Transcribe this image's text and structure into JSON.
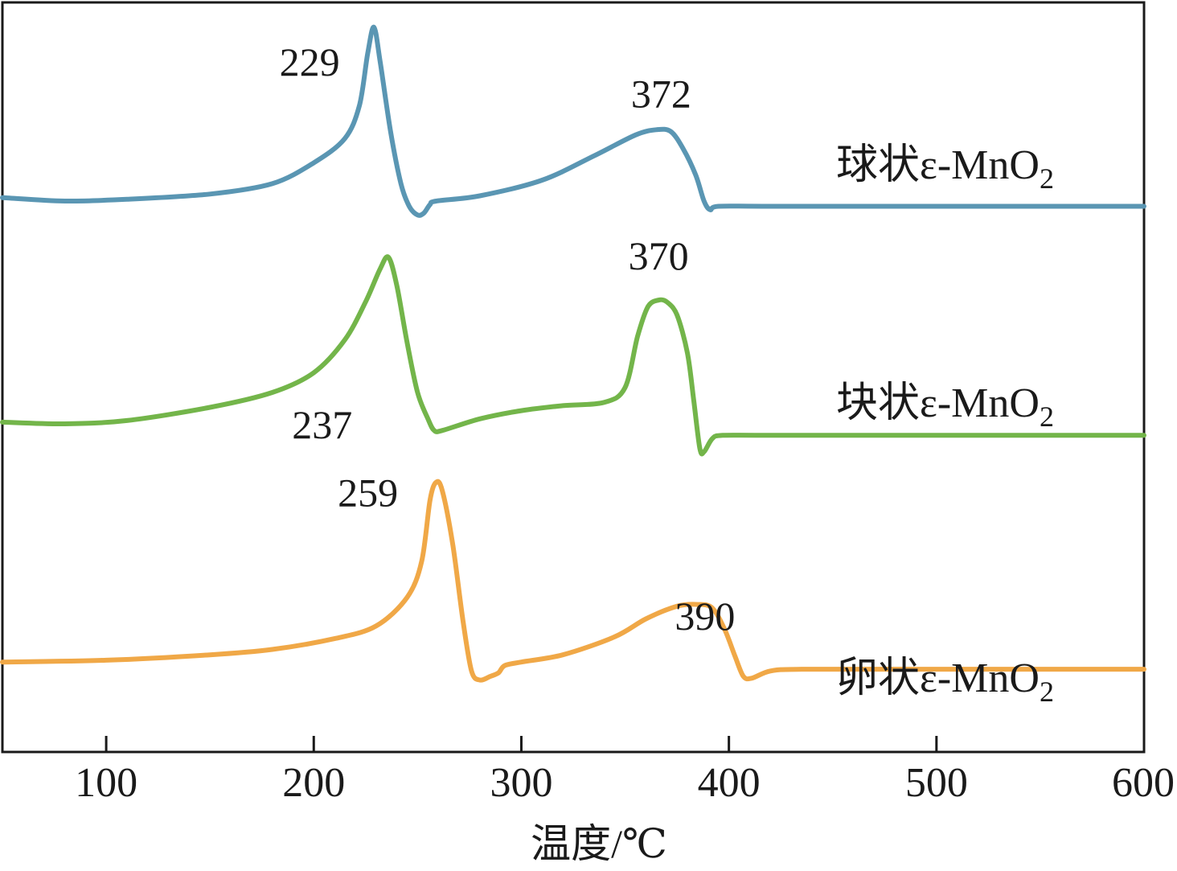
{
  "chart_data": {
    "type": "line",
    "xlabel": "温度/℃",
    "ylabel": "",
    "xlim": [
      50,
      600
    ],
    "xticks": [
      100,
      200,
      300,
      400,
      500,
      600
    ],
    "xtick_labels": [
      "100",
      "200",
      "300",
      "400",
      "500",
      "600"
    ],
    "yticks_shown": false,
    "grid": false,
    "series": [
      {
        "name": "球状ε-MnO",
        "name_subscript": "2",
        "color": "#5a96b3",
        "offset": 0.735,
        "scale": 0.232,
        "points": [
          [
            50,
            0.02
          ],
          [
            80,
            0.0
          ],
          [
            110,
            0.01
          ],
          [
            150,
            0.04
          ],
          [
            180,
            0.1
          ],
          [
            200,
            0.22
          ],
          [
            215,
            0.36
          ],
          [
            222,
            0.55
          ],
          [
            226,
            0.85
          ],
          [
            229,
            1.0
          ],
          [
            232,
            0.8
          ],
          [
            237,
            0.4
          ],
          [
            242,
            0.1
          ],
          [
            246,
            -0.03
          ],
          [
            250,
            -0.08
          ],
          [
            253,
            -0.07
          ],
          [
            256,
            -0.02
          ],
          [
            259,
            0.0
          ],
          [
            280,
            0.03
          ],
          [
            310,
            0.12
          ],
          [
            335,
            0.26
          ],
          [
            355,
            0.38
          ],
          [
            365,
            0.41
          ],
          [
            372,
            0.4
          ],
          [
            378,
            0.3
          ],
          [
            384,
            0.15
          ],
          [
            388,
            0.0
          ],
          [
            391,
            -0.05
          ],
          [
            395,
            -0.03
          ],
          [
            420,
            -0.03
          ],
          [
            500,
            -0.03
          ],
          [
            600,
            -0.03
          ]
        ],
        "peaks": [
          {
            "x": 229,
            "label": "229"
          },
          {
            "x": 372,
            "label": "372"
          }
        ]
      },
      {
        "name": "块状ε-MnO",
        "name_subscript": "2",
        "color": "#73b54a",
        "offset": 0.44,
        "scale": 0.22,
        "points": [
          [
            50,
            0.0
          ],
          [
            80,
            -0.01
          ],
          [
            110,
            0.01
          ],
          [
            150,
            0.09
          ],
          [
            180,
            0.18
          ],
          [
            200,
            0.3
          ],
          [
            215,
            0.5
          ],
          [
            225,
            0.73
          ],
          [
            232,
            0.93
          ],
          [
            236,
            1.0
          ],
          [
            240,
            0.83
          ],
          [
            245,
            0.48
          ],
          [
            250,
            0.18
          ],
          [
            255,
            0.02
          ],
          [
            258,
            -0.05
          ],
          [
            262,
            -0.05
          ],
          [
            280,
            0.02
          ],
          [
            300,
            0.07
          ],
          [
            320,
            0.1
          ],
          [
            340,
            0.12
          ],
          [
            350,
            0.21
          ],
          [
            356,
            0.52
          ],
          [
            361,
            0.7
          ],
          [
            366,
            0.74
          ],
          [
            370,
            0.73
          ],
          [
            375,
            0.65
          ],
          [
            380,
            0.42
          ],
          [
            383,
            0.14
          ],
          [
            386,
            -0.16
          ],
          [
            388,
            -0.18
          ],
          [
            392,
            -0.1
          ],
          [
            397,
            -0.08
          ],
          [
            420,
            -0.08
          ],
          [
            500,
            -0.08
          ],
          [
            600,
            -0.08
          ]
        ],
        "peaks": [
          {
            "x": 237,
            "label": "237"
          },
          {
            "x": 370,
            "label": "370"
          }
        ]
      },
      {
        "name": "卵状ε-MnO",
        "name_subscript": "2",
        "color": "#f0a847",
        "offset": 0.12,
        "scale": 0.24,
        "points": [
          [
            50,
            0.0
          ],
          [
            100,
            0.01
          ],
          [
            150,
            0.04
          ],
          [
            180,
            0.07
          ],
          [
            210,
            0.13
          ],
          [
            230,
            0.2
          ],
          [
            245,
            0.36
          ],
          [
            252,
            0.56
          ],
          [
            256,
            0.9
          ],
          [
            259,
            1.0
          ],
          [
            262,
            0.95
          ],
          [
            267,
            0.65
          ],
          [
            272,
            0.22
          ],
          [
            276,
            -0.05
          ],
          [
            280,
            -0.1
          ],
          [
            285,
            -0.08
          ],
          [
            289,
            -0.06
          ],
          [
            292,
            -0.02
          ],
          [
            300,
            0.0
          ],
          [
            320,
            0.04
          ],
          [
            345,
            0.14
          ],
          [
            360,
            0.24
          ],
          [
            375,
            0.31
          ],
          [
            385,
            0.32
          ],
          [
            392,
            0.3
          ],
          [
            398,
            0.18
          ],
          [
            403,
            0.03
          ],
          [
            407,
            -0.08
          ],
          [
            411,
            -0.09
          ],
          [
            420,
            -0.05
          ],
          [
            435,
            -0.04
          ],
          [
            500,
            -0.04
          ],
          [
            600,
            -0.04
          ]
        ],
        "peaks": [
          {
            "x": 259,
            "label": "259"
          },
          {
            "x": 390,
            "label": "390"
          }
        ]
      }
    ]
  }
}
